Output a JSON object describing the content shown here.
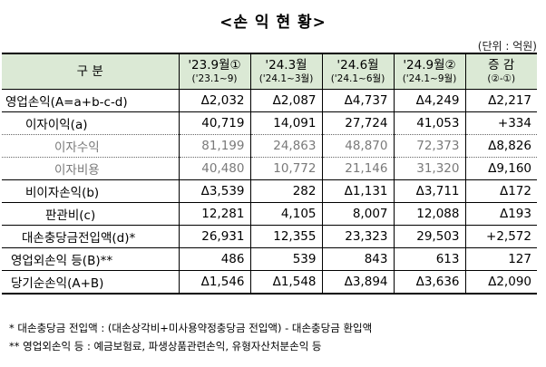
{
  "title": "<손 익 현 황>",
  "unit": "(단위 : 억원)",
  "header": {
    "label": "구  분",
    "cols": [
      {
        "main": "'23.9월①",
        "sub": "('23.1~9)"
      },
      {
        "main": "'24.3월",
        "sub": "('24.1~3월)"
      },
      {
        "main": "'24.6월",
        "sub": "('24.1~6월)"
      },
      {
        "main": "'24.9월②",
        "sub": "('24.1~9월)"
      },
      {
        "main": "증 감",
        "sub": "(②-①)"
      }
    ]
  },
  "rows": [
    {
      "label": "영업손익(A=a+b-c-d)",
      "values": [
        "Δ2,032",
        "Δ2,087",
        "Δ4,737",
        "Δ4,249",
        "Δ2,217"
      ]
    },
    {
      "label": "이자이익(a)",
      "values": [
        "40,719",
        "14,091",
        "27,724",
        "41,053",
        "+334"
      ]
    },
    {
      "label": "이자수익",
      "values": [
        "81,199",
        "24,863",
        "48,870",
        "72,373",
        "Δ8,826"
      ]
    },
    {
      "label": "이자비용",
      "values": [
        "40,480",
        "10,772",
        "21,146",
        "31,320",
        "Δ9,160"
      ]
    },
    {
      "label": "비이자손익(b)",
      "values": [
        "Δ3,539",
        "282",
        "Δ1,131",
        "Δ3,711",
        "Δ172"
      ]
    },
    {
      "label": "판관비(c)",
      "values": [
        "12,281",
        "4,105",
        "8,007",
        "12,088",
        "Δ193"
      ]
    },
    {
      "label": "대손충당금전입액(d)*",
      "values": [
        "26,931",
        "12,355",
        "23,323",
        "29,503",
        "+2,572"
      ]
    },
    {
      "label": "영업외손익 등(B)**",
      "values": [
        "486",
        "539",
        "843",
        "613",
        "127"
      ]
    },
    {
      "label": "당기순손익(A+B)",
      "values": [
        "Δ1,546",
        "Δ1,548",
        "Δ3,894",
        "Δ3,636",
        "Δ2,090"
      ]
    }
  ],
  "notes": [
    "* 대손충당금 전입액 : (대손상각비+미사용약정충당금 전입액) - 대손충당금 환입액",
    "** 영업외손익 등 : 예금보험료, 파생상품관련손익, 유형자산처분손익 등"
  ]
}
